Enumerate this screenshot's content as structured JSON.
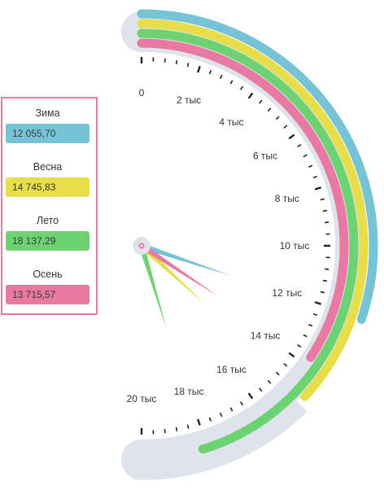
{
  "chart_data": {
    "type": "gauge",
    "scale": {
      "min": 0,
      "max": 20000
    },
    "tick_labels": [
      "0",
      "2 тыс",
      "4 тыс",
      "6 тыс",
      "8 тыс",
      "10 тыс",
      "12 тыс",
      "14 тыс",
      "16 тыс",
      "18 тыс",
      "20 тыс"
    ],
    "series": [
      {
        "name": "Зима",
        "value": 12055.7,
        "value_label": "12 055,70",
        "color": "#77c3d6"
      },
      {
        "name": "Весна",
        "value": 14745.83,
        "value_label": "14 745,83",
        "color": "#e8dd4a"
      },
      {
        "name": "Лето",
        "value": 18137.29,
        "value_label": "18 137,29",
        "color": "#6dd372"
      },
      {
        "name": "Осень",
        "value": 13715.57,
        "value_label": "13 715,57",
        "color": "#e879a0"
      }
    ],
    "track_color": "#dfe4ec"
  }
}
